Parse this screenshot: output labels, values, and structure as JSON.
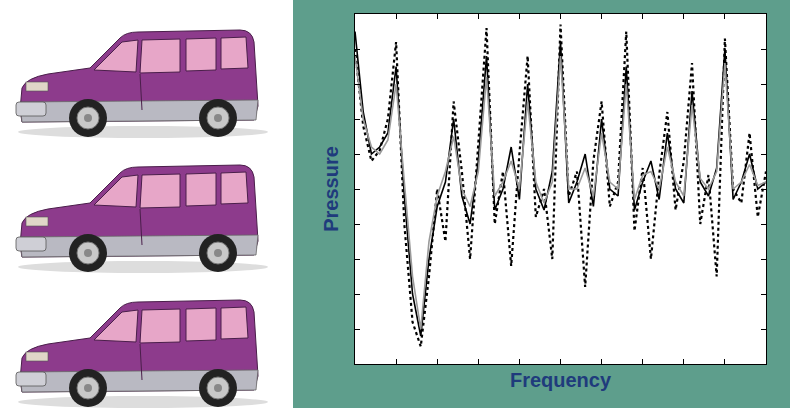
{
  "chart_data": {
    "type": "line",
    "x_title": "Frequency",
    "y_title": "Pressure",
    "xlim": [
      0,
      100
    ],
    "ylim": [
      0,
      100
    ],
    "xticks": [
      0,
      10,
      20,
      30,
      40,
      50,
      60,
      70,
      80,
      90,
      100
    ],
    "yticks": [
      0,
      10,
      20,
      30,
      40,
      50,
      60,
      70,
      80,
      90,
      100
    ],
    "tick_labels": false,
    "grid": false,
    "x": [
      0,
      2,
      4,
      6,
      8,
      10,
      12,
      14,
      16,
      18,
      20,
      22,
      24,
      26,
      28,
      30,
      32,
      34,
      36,
      38,
      40,
      42,
      44,
      46,
      48,
      50,
      52,
      54,
      56,
      58,
      60,
      62,
      64,
      66,
      68,
      70,
      72,
      74,
      76,
      78,
      80,
      82,
      84,
      86,
      88,
      90,
      92,
      94,
      96,
      98,
      100
    ],
    "series": [
      {
        "color": "#000000",
        "line_style": "solid",
        "values": [
          95,
          72,
          60,
          62,
          66,
          85,
          48,
          20,
          8,
          30,
          45,
          52,
          70,
          48,
          40,
          58,
          88,
          44,
          50,
          62,
          47,
          80,
          50,
          44,
          55,
          92,
          46,
          52,
          60,
          45,
          70,
          50,
          48,
          85,
          44,
          52,
          58,
          47,
          66,
          50,
          46,
          78,
          52,
          48,
          56,
          90,
          47,
          52,
          60,
          50,
          52
        ]
      },
      {
        "color": "#000000",
        "line_style": "dot",
        "values": [
          90,
          68,
          58,
          61,
          70,
          92,
          40,
          12,
          5,
          25,
          50,
          35,
          75,
          55,
          30,
          62,
          96,
          40,
          55,
          28,
          60,
          88,
          42,
          50,
          30,
          97,
          48,
          55,
          22,
          58,
          75,
          45,
          52,
          95,
          38,
          56,
          30,
          54,
          72,
          44,
          58,
          86,
          40,
          54,
          25,
          93,
          50,
          46,
          66,
          42,
          55
        ]
      },
      {
        "color": "#9a9a9a",
        "line_style": "solid",
        "values": [
          88,
          70,
          62,
          60,
          64,
          80,
          52,
          25,
          10,
          35,
          48,
          55,
          65,
          50,
          45,
          55,
          82,
          48,
          52,
          58,
          50,
          75,
          52,
          46,
          52,
          88,
          50,
          50,
          56,
          48,
          66,
          52,
          50,
          80,
          47,
          54,
          55,
          50,
          62,
          52,
          48,
          74,
          53,
          50,
          55,
          86,
          50,
          52,
          57,
          51,
          52
        ]
      }
    ]
  }
}
